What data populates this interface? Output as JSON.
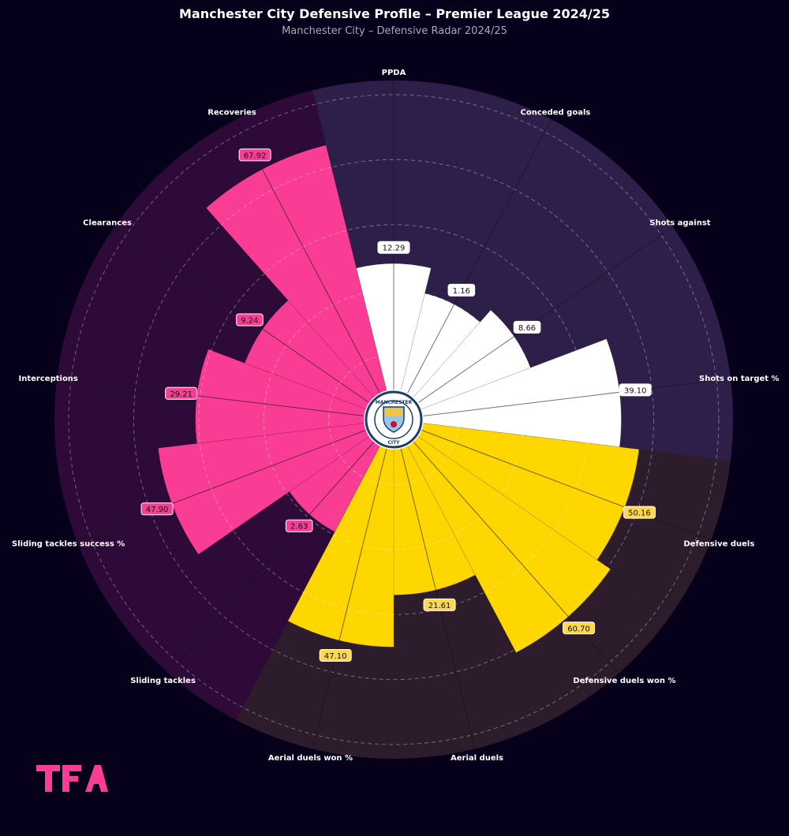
{
  "chart_data": {
    "type": "polar-bar",
    "title": "Manchester City Defensive Profile – Premier League 2024/25",
    "subtitle": "Manchester City – Defensive Radar 2024/25",
    "rlim": [
      0,
      100
    ],
    "grid": true,
    "categories": [
      "PPDA",
      "Conceded goals",
      "Shots against",
      "Shots on target %",
      "Defensive duels",
      "Defensive duels won %",
      "Aerial duels",
      "Aerial duels won %",
      "Sliding tackles",
      "Sliding tackles success %",
      "Interceptions",
      "Clearances",
      "Recoveries"
    ],
    "raw_values": [
      "12.29",
      "1.16",
      "8.66",
      "39.10",
      "50.16",
      "60.70",
      "21.61",
      "47.10",
      "2.63",
      "47.90",
      "29.21",
      "9.24",
      "67.92"
    ],
    "percentiles": [
      48,
      40,
      45,
      70,
      76,
      81,
      54,
      70,
      39,
      73,
      61,
      49,
      87
    ],
    "groups": [
      "white",
      "white",
      "white",
      "white",
      "yellow",
      "yellow",
      "yellow",
      "yellow",
      "pink",
      "pink",
      "pink",
      "pink",
      "pink"
    ],
    "colors": {
      "white": "#ffffff",
      "yellow": "#ffd700",
      "pink": "#f93d94"
    },
    "sector_colors": {
      "white": "#2e1f4a",
      "yellow": "#2d1c2b",
      "pink": "#2d0a38"
    }
  },
  "brand": {
    "logo_text": "TFA",
    "crest_top": "MANCHESTER",
    "crest_bottom": "CITY"
  }
}
